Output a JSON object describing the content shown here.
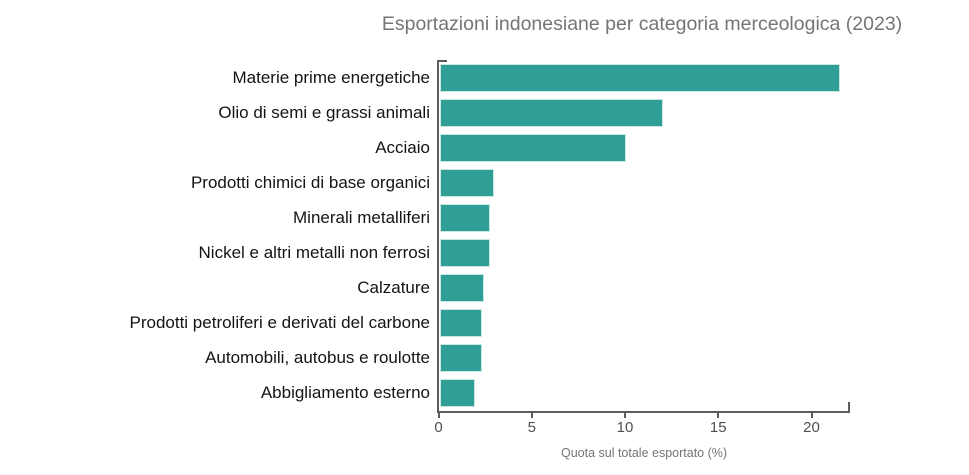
{
  "chart_data": {
    "type": "bar",
    "orientation": "horizontal",
    "title": "Esportazioni indonesiane per categoria merceologica (2023)",
    "categories": [
      "Materie prime energetiche",
      "Olio di semi e grassi animali",
      "Acciaio",
      "Prodotti chimici di base organici",
      "Minerali metalliferi",
      "Nickel e altri metalli non ferrosi",
      "Calzature",
      "Prodotti petroliferi e derivati del carbone",
      "Automobili, autobus e roulotte",
      "Abbigliamento esterno"
    ],
    "values": [
      21.5,
      12,
      10,
      2.9,
      2.7,
      2.7,
      2.4,
      2.3,
      2.3,
      1.9
    ],
    "xlabel": "Quota sul totale esportato (%)",
    "xlim": [
      0,
      22
    ],
    "xticks": [
      0,
      5,
      10,
      15,
      20
    ],
    "grid": false,
    "legend": false,
    "colors": {
      "bar_fill": "#2f9e95",
      "bar_border": "#cbe7e4",
      "axis_line": "#595d60",
      "tick_text": "#4f4f4f",
      "title_text": "#757575"
    }
  }
}
